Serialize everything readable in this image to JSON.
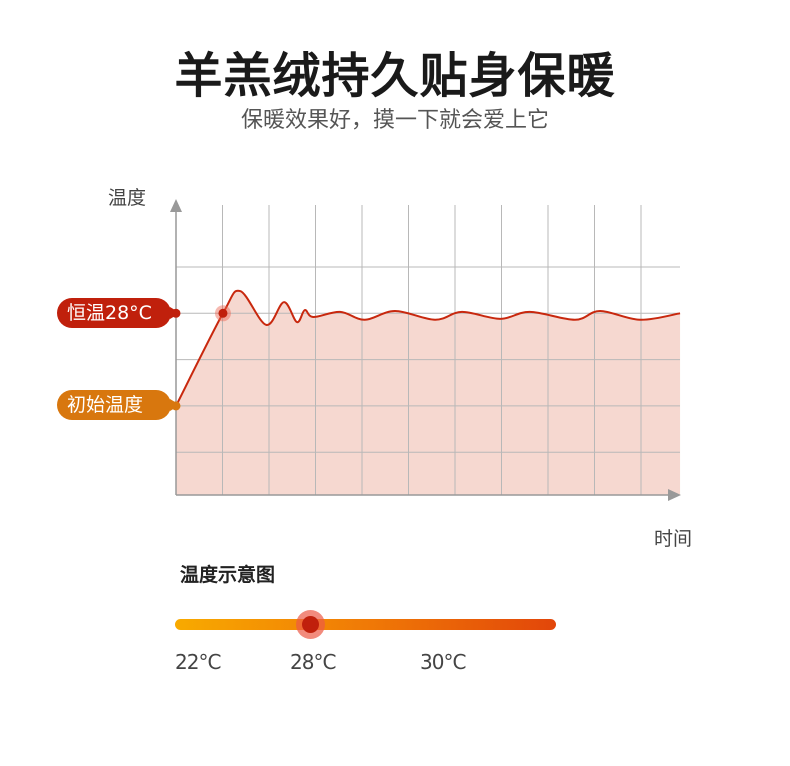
{
  "header": {
    "title": "羊羔绒持久贴身保暖",
    "subtitle": "保暖效果好，摸一下就会爱上它"
  },
  "chart_data": {
    "type": "area",
    "xlabel": "时间",
    "ylabel": "温度",
    "grid": true,
    "annotations": [
      {
        "label": "恒温28°C",
        "y": 4,
        "color": "#c0200c"
      },
      {
        "label": "初始温度",
        "y": 2,
        "color": "#d8770e"
      }
    ],
    "xlim": [
      0,
      10.84
    ],
    "ylim": [
      0,
      6.2
    ],
    "line_color": "#c8280e",
    "fill_color": "#f6d8d0",
    "points": [
      [
        0,
        2
      ],
      [
        1.01,
        4
      ],
      [
        1.38,
        4.48
      ],
      [
        1.94,
        3.75
      ],
      [
        2.32,
        4.24
      ],
      [
        2.6,
        3.81
      ],
      [
        2.77,
        4.07
      ],
      [
        2.95,
        3.92
      ],
      [
        3.53,
        4.03
      ],
      [
        4.06,
        3.86
      ],
      [
        4.71,
        4.05
      ],
      [
        5.57,
        3.86
      ],
      [
        6.15,
        4.03
      ],
      [
        6.97,
        3.88
      ],
      [
        7.61,
        4.03
      ],
      [
        8.58,
        3.86
      ],
      [
        9.12,
        4.05
      ],
      [
        9.98,
        3.86
      ],
      [
        10.84,
        4
      ]
    ]
  },
  "legend": {
    "title": "温度示意图",
    "scale_labels": [
      "22°C",
      "28°C",
      "30°C"
    ],
    "current": "28°C",
    "gradient_colors": [
      "#f8aa00",
      "#e2460a"
    ],
    "knob_color": "#c0200c"
  }
}
